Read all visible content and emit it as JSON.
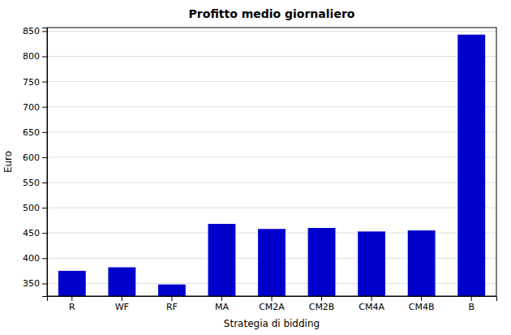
{
  "chart_data": {
    "type": "bar",
    "title": "Profitto medio giornaliero",
    "x_label": "Strategia di bidding",
    "y_label": "Euro",
    "categories": [
      "R",
      "WF",
      "RF",
      "MA",
      "CM2A",
      "CM2B",
      "CM4A",
      "CM4B",
      "B"
    ],
    "values": [
      375,
      382,
      348,
      468,
      458,
      460,
      453,
      455,
      843
    ],
    "color": "#0000CC",
    "ylim": [
      325,
      857
    ],
    "yticks": [
      350,
      400,
      450,
      500,
      550,
      600,
      650,
      700,
      750,
      800,
      850
    ],
    "grid": true
  }
}
